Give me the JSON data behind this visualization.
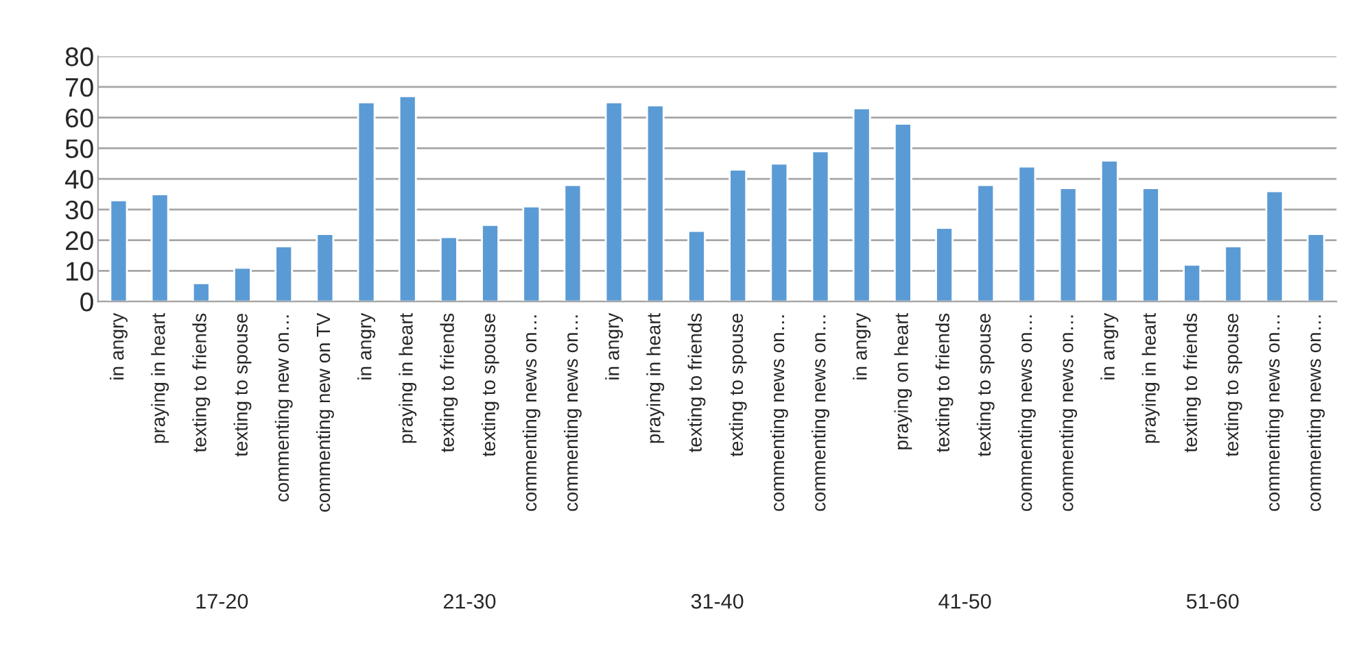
{
  "chart_data": {
    "type": "bar",
    "categories": [
      "in angry",
      "praying in heart",
      "texting to friends",
      "texting to spouse",
      "commenting new on…",
      "commenting new on TV",
      "in angry",
      "praying in heart",
      "texting to friends",
      "texting to spouse",
      "commenting news on…",
      "commenting news on…",
      "in angry",
      "praying in heart",
      "texting to friends",
      "texting to spouse",
      "commenting news on…",
      "commenting news on…",
      "in angry",
      "praying on heart",
      "texting to friends",
      "texting to spouse",
      "commenting news on…",
      "commenting news on…",
      "in angry",
      "praying in heart",
      "texting to friends",
      "texting to spouse",
      "commenting news on…",
      "commenting news on…"
    ],
    "values": [
      33,
      35,
      6,
      11,
      18,
      22,
      65,
      67,
      21,
      25,
      31,
      38,
      65,
      64,
      23,
      43,
      45,
      49,
      63,
      58,
      24,
      38,
      44,
      37,
      46,
      37,
      12,
      18,
      36,
      22
    ],
    "color": "#5b9bd5",
    "annotations": [
      "17-20",
      "21-30",
      "31-40",
      "41-50",
      "51-60"
    ],
    "ylim": [
      0,
      80
    ],
    "yticks": [
      0,
      10,
      20,
      30,
      40,
      50,
      60,
      70,
      80
    ],
    "grid": "y",
    "legend": false
  }
}
